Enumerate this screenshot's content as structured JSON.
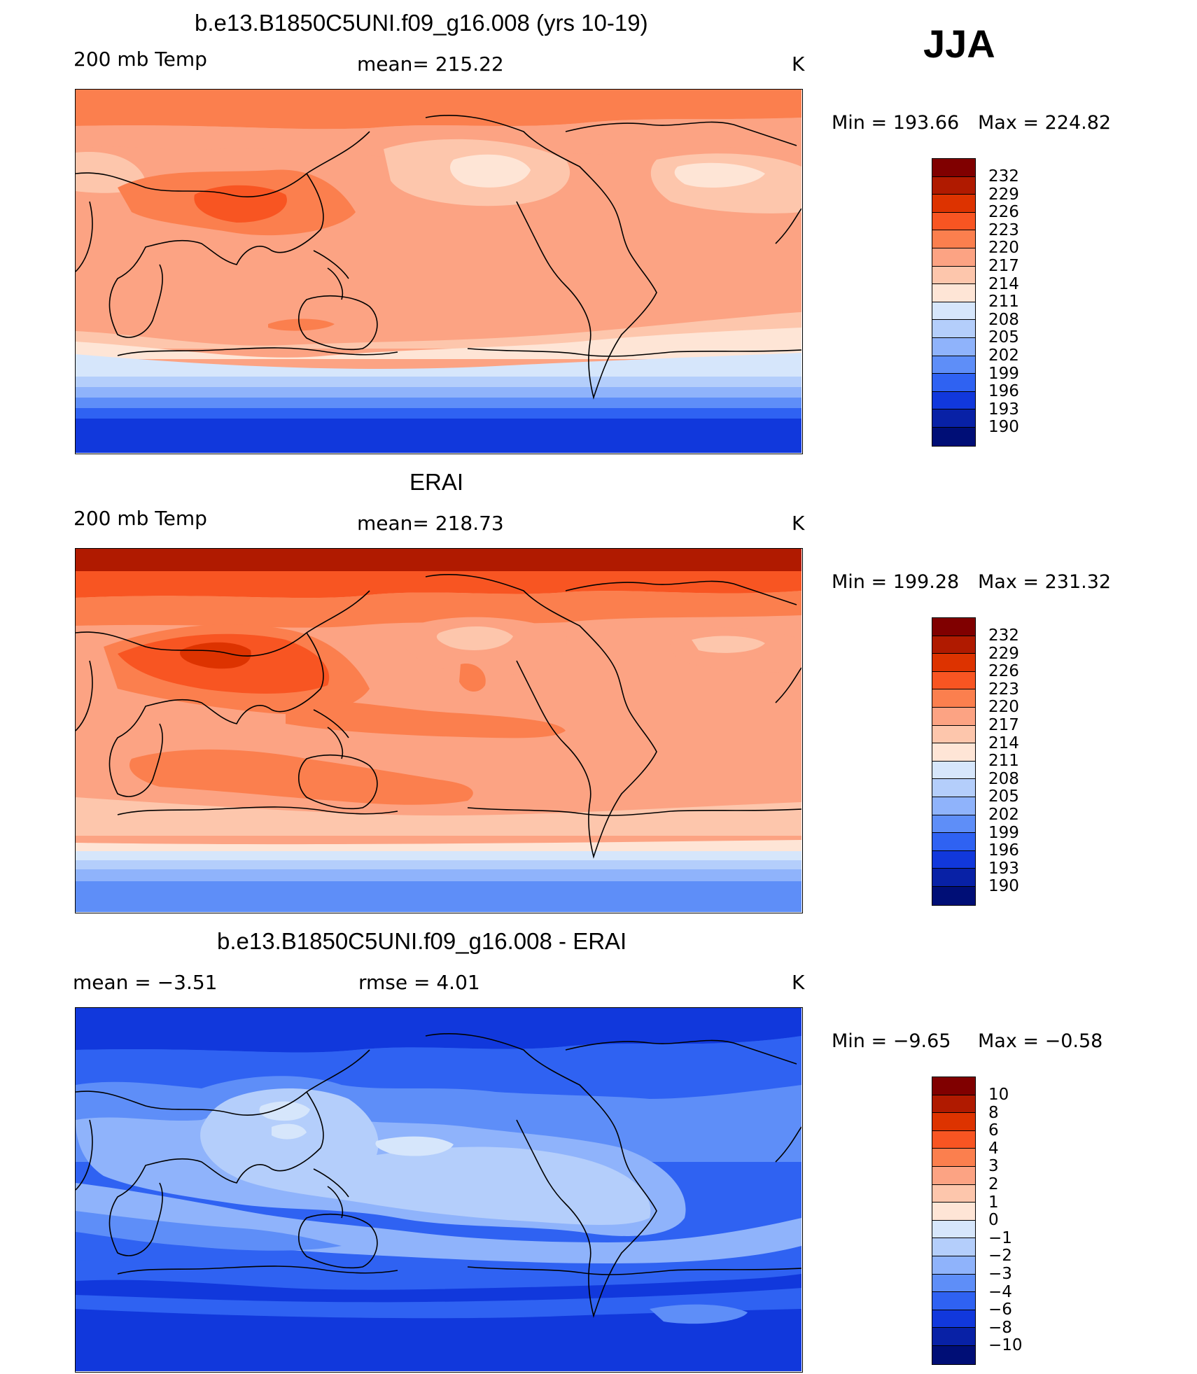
{
  "season": "JJA",
  "units": "K",
  "panels": [
    {
      "title": "b.e13.B1850C5UNI.f09_g16.008 (yrs 10-19)",
      "left_label": "200 mb Temp",
      "center_label": "mean=  215.22",
      "units": "K",
      "min_label": "Min  =  193.66",
      "max_label": "Max  =  224.82",
      "colorbar_labels": [
        "232",
        "229",
        "226",
        "223",
        "220",
        "217",
        "214",
        "211",
        "208",
        "205",
        "202",
        "199",
        "196",
        "193",
        "190"
      ]
    },
    {
      "title": "ERAI",
      "left_label": "200 mb Temp",
      "center_label": "mean=  218.73",
      "units": "K",
      "min_label": "Min  =  199.28",
      "max_label": "Max  =  231.32",
      "colorbar_labels": [
        "232",
        "229",
        "226",
        "223",
        "220",
        "217",
        "214",
        "211",
        "208",
        "205",
        "202",
        "199",
        "196",
        "193",
        "190"
      ]
    },
    {
      "title": "b.e13.B1850C5UNI.f09_g16.008 - ERAI",
      "left_label": "mean  =    −3.51",
      "center_label": "rmse  =     4.01",
      "units": "K",
      "min_label": "Min  =    −9.65",
      "max_label": "Max  =    −0.58",
      "colorbar_labels": [
        "10",
        "8",
        "6",
        "4",
        "3",
        "2",
        "1",
        "0",
        "−1",
        "−2",
        "−3",
        "−4",
        "−6",
        "−8",
        "−10"
      ]
    }
  ],
  "colors": {
    "scale": [
      "#800000",
      "#b01a00",
      "#dd3300",
      "#f85522",
      "#fb7f4e",
      "#fca383",
      "#fdc6ac",
      "#fee5d6",
      "#d6e6fb",
      "#b4cefb",
      "#8fb3fb",
      "#5e8ef8",
      "#2f62f2",
      "#1138dc",
      "#0821a6",
      "#000e76"
    ]
  },
  "chart_data": {
    "type": "heatmap",
    "projection": "cylindrical equidistant, Pacific-centered",
    "variable": "200 mb Temp",
    "season": "JJA",
    "panels": [
      {
        "name": "model",
        "mean": 215.22,
        "min": 193.66,
        "max": 224.82,
        "units": "K",
        "levels": [
          190,
          193,
          196,
          199,
          202,
          205,
          208,
          211,
          214,
          217,
          220,
          223,
          226,
          229,
          232
        ]
      },
      {
        "name": "ERAI",
        "mean": 218.73,
        "min": 199.28,
        "max": 231.32,
        "units": "K",
        "levels": [
          190,
          193,
          196,
          199,
          202,
          205,
          208,
          211,
          214,
          217,
          220,
          223,
          226,
          229,
          232
        ]
      },
      {
        "name": "model - ERAI",
        "mean": -3.51,
        "rmse": 4.01,
        "min": -9.65,
        "max": -0.58,
        "units": "K",
        "levels": [
          -10,
          -8,
          -6,
          -4,
          -3,
          -2,
          -1,
          0,
          1,
          2,
          3,
          4,
          6,
          8,
          10
        ]
      }
    ]
  }
}
